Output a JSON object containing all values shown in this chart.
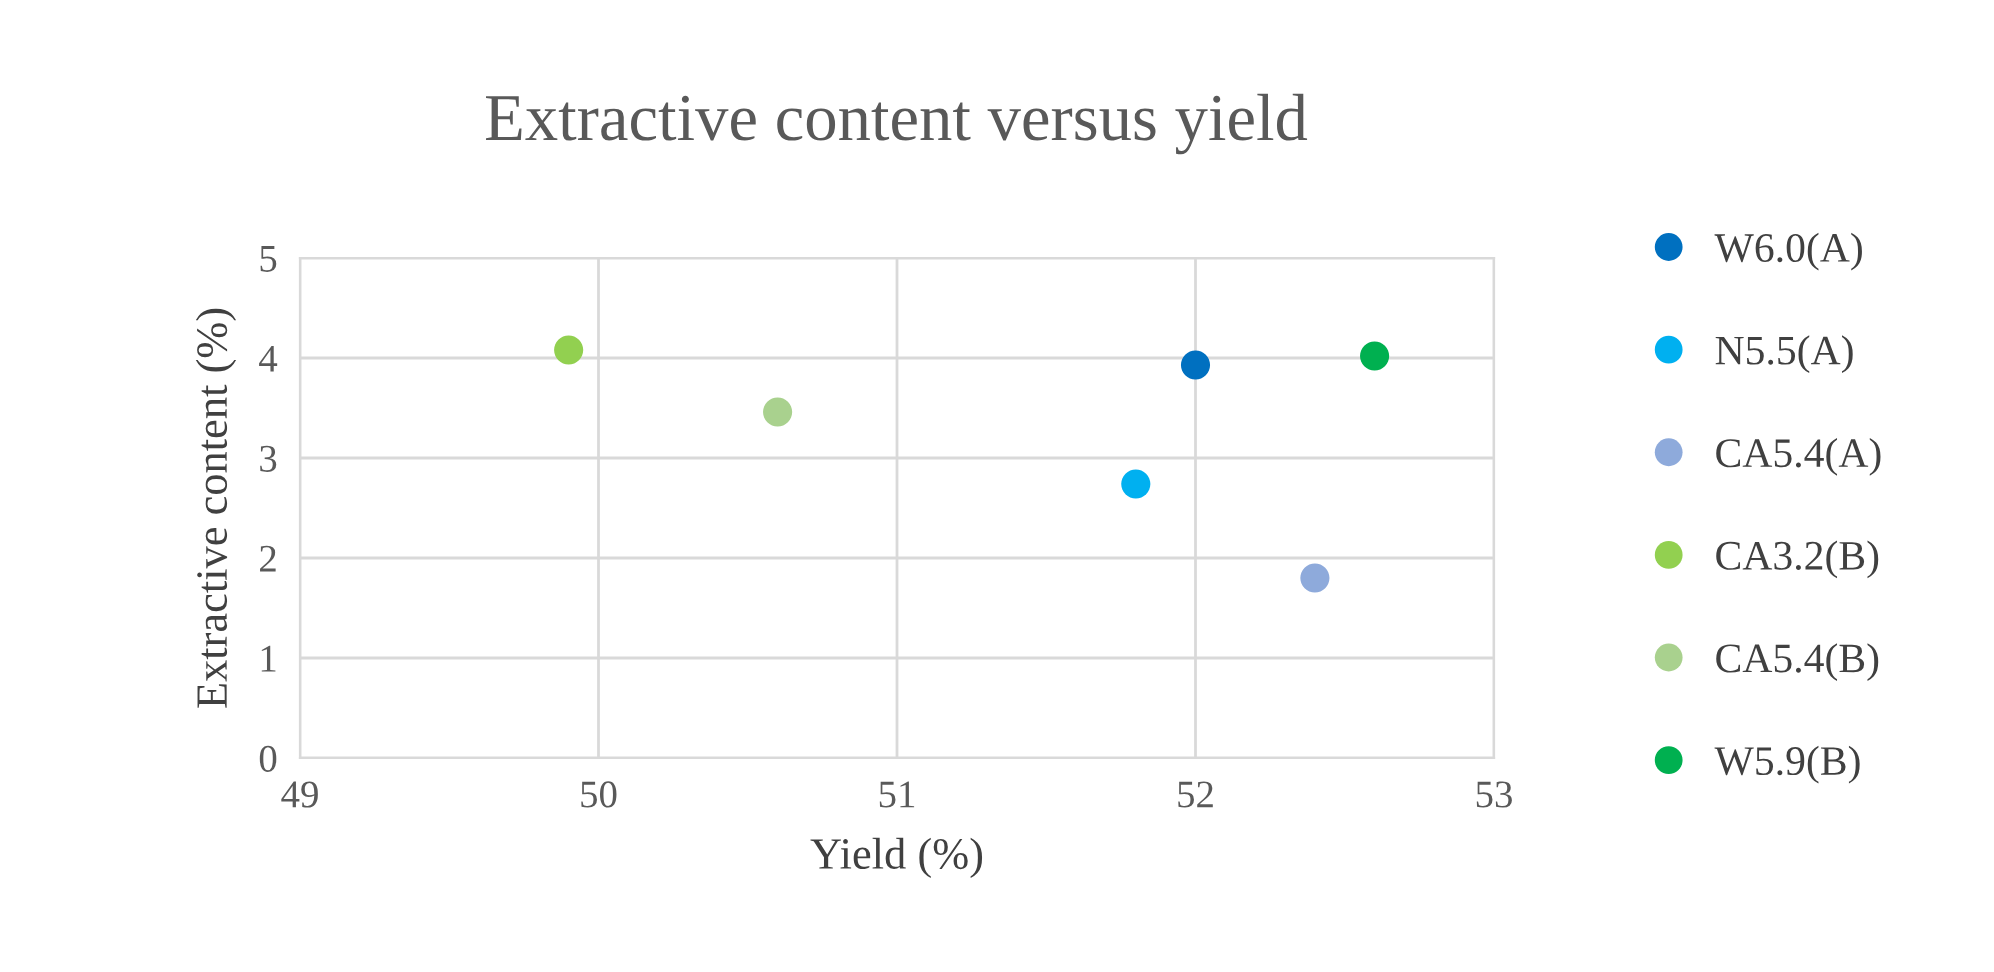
{
  "chart_data": {
    "type": "scatter",
    "title": "Extractive content versus yield",
    "xlabel": "Yield (%)",
    "ylabel": "Extractive content (%)",
    "xlim": [
      49,
      53
    ],
    "xticks": [
      49,
      50,
      51,
      52,
      53
    ],
    "ylim": [
      0,
      5
    ],
    "yticks": [
      0,
      1,
      2,
      3,
      4,
      5
    ],
    "grid": true,
    "legend": "right",
    "marker": "circle",
    "series": [
      {
        "name": "W6.0(A)",
        "color": "#0070c0",
        "x": [
          52.0
        ],
        "values": [
          3.93
        ]
      },
      {
        "name": "N5.5(A)",
        "color": "#00b0f0",
        "x": [
          51.8
        ],
        "values": [
          2.74
        ]
      },
      {
        "name": "CA5.4(A)",
        "color": "#8eaadb",
        "x": [
          52.4
        ],
        "values": [
          1.8
        ]
      },
      {
        "name": "CA3.2(B)",
        "color": "#92d050",
        "x": [
          49.9
        ],
        "values": [
          4.08
        ]
      },
      {
        "name": "CA5.4(B)",
        "color": "#a9d18e",
        "x": [
          50.6
        ],
        "values": [
          3.46
        ]
      },
      {
        "name": "W5.9(B)",
        "color": "#00b050",
        "x": [
          52.6
        ],
        "values": [
          4.02
        ]
      }
    ]
  }
}
